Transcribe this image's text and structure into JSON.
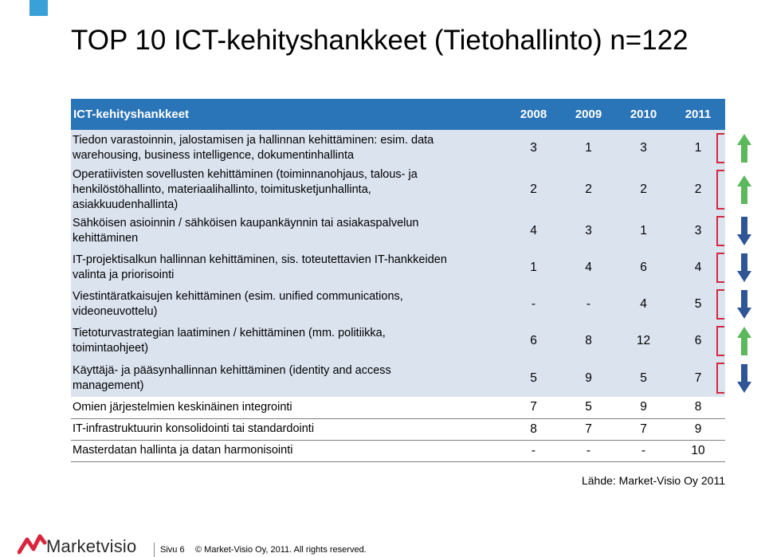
{
  "title": "TOP 10 ICT-kehityshankkeet (Tietohallinto) n=122",
  "table": {
    "header": {
      "label": "ICT-kehityshankkeet",
      "years": [
        "2008",
        "2009",
        "2010",
        "2011"
      ]
    },
    "rows": [
      {
        "lines": [
          "Tiedon varastoinnin, jalostamisen ja hallinnan kehittäminen: esim. data",
          "warehousing, business intelligence, dokumentinhallinta"
        ],
        "values": [
          "3",
          "1",
          "3",
          "1"
        ],
        "trend": "up"
      },
      {
        "lines": [
          "Operatiivisten sovellusten kehittäminen (toiminnanohjaus, talous- ja",
          "henkilöstöhallinto, materiaalihallinto, toimitusketjunhallinta,",
          "asiakkuudenhallinta)"
        ],
        "values": [
          "2",
          "2",
          "2",
          "2"
        ],
        "trend": "up"
      },
      {
        "lines": [
          "Sähköisen asioinnin / sähköisen kaupankäynnin tai asiakaspalvelun",
          "kehittäminen"
        ],
        "values": [
          "4",
          "3",
          "1",
          "3"
        ],
        "trend": "down"
      },
      {
        "lines": [
          "IT-projektisalkun hallinnan kehittäminen, sis. toteutettavien IT-hankkeiden",
          "valinta ja priorisointi"
        ],
        "values": [
          "1",
          "4",
          "6",
          "4"
        ],
        "trend": "down"
      },
      {
        "lines": [
          "Viestintäratkaisujen kehittäminen (esim. unified communications,",
          "videoneuvottelu)"
        ],
        "values": [
          "-",
          "-",
          "4",
          "5"
        ],
        "trend": "down"
      },
      {
        "lines": [
          "Tietoturvastrategian laatiminen / kehittäminen (mm. politiikka,",
          "toimintaohjeet)"
        ],
        "values": [
          "6",
          "8",
          "12",
          "6"
        ],
        "trend": "up"
      },
      {
        "lines": [
          "Käyttäjä- ja pääsynhallinnan kehittäminen (identity and access",
          "management)"
        ],
        "values": [
          "5",
          "9",
          "5",
          "7"
        ],
        "trend": "down"
      },
      {
        "lines": [
          "Omien järjestelmien keskinäinen integrointi"
        ],
        "values": [
          "7",
          "5",
          "9",
          "8"
        ],
        "trend": "none"
      },
      {
        "lines": [
          "IT-infrastruktuurin konsolidointi tai standardointi"
        ],
        "values": [
          "8",
          "7",
          "7",
          "9"
        ],
        "trend": "none"
      },
      {
        "lines": [
          "Masterdatan hallinta ja datan harmonisointi"
        ],
        "values": [
          "-",
          "-",
          "-",
          "10"
        ],
        "trend": "none"
      }
    ]
  },
  "source": "Lähde: Market-Visio Oy 2011",
  "footer": {
    "logo_text": "Marketvisio",
    "page": "Sivu 6",
    "copyright": "© Market-Visio Oy, 2011. All rights reserved."
  },
  "colors": {
    "header_bg": "#2a74b8",
    "row_shade": "#dbe3ef",
    "highlight": "#d7263d",
    "arrow_up": "#5cb85c",
    "arrow_down": "#2f5597"
  }
}
